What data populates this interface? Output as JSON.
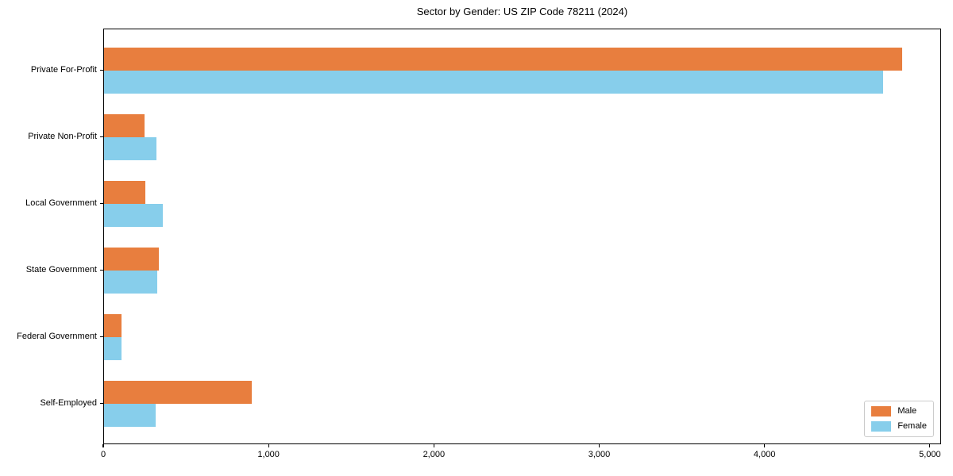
{
  "figure": {
    "background": "#ffffff",
    "text_color": "#000000",
    "spine_color": "#000000"
  },
  "chart_data": {
    "type": "bar",
    "orientation": "horizontal",
    "title": "Sector by Gender: US ZIP Code 78211 (2024)",
    "categories": [
      "Private For-Profit",
      "Private Non-Profit",
      "Local Government",
      "State Government",
      "Federal Government",
      "Self-Employed"
    ],
    "series": [
      {
        "name": "Male",
        "color": "#e87e3e",
        "values": [
          4830,
          245,
          250,
          333,
          106,
          894
        ]
      },
      {
        "name": "Female",
        "color": "#87ceeb",
        "values": [
          4712,
          317,
          356,
          324,
          104,
          313
        ]
      }
    ],
    "xlabel": "",
    "ylabel": "",
    "xlim": [
      0,
      5068
    ],
    "xticks": {
      "values": [
        0,
        1000,
        2000,
        3000,
        4000,
        5000
      ],
      "labels": [
        "0",
        "1,000",
        "2,000",
        "3,000",
        "4,000",
        "5,000"
      ]
    },
    "grid": false,
    "legend": {
      "position": "lower right"
    }
  }
}
